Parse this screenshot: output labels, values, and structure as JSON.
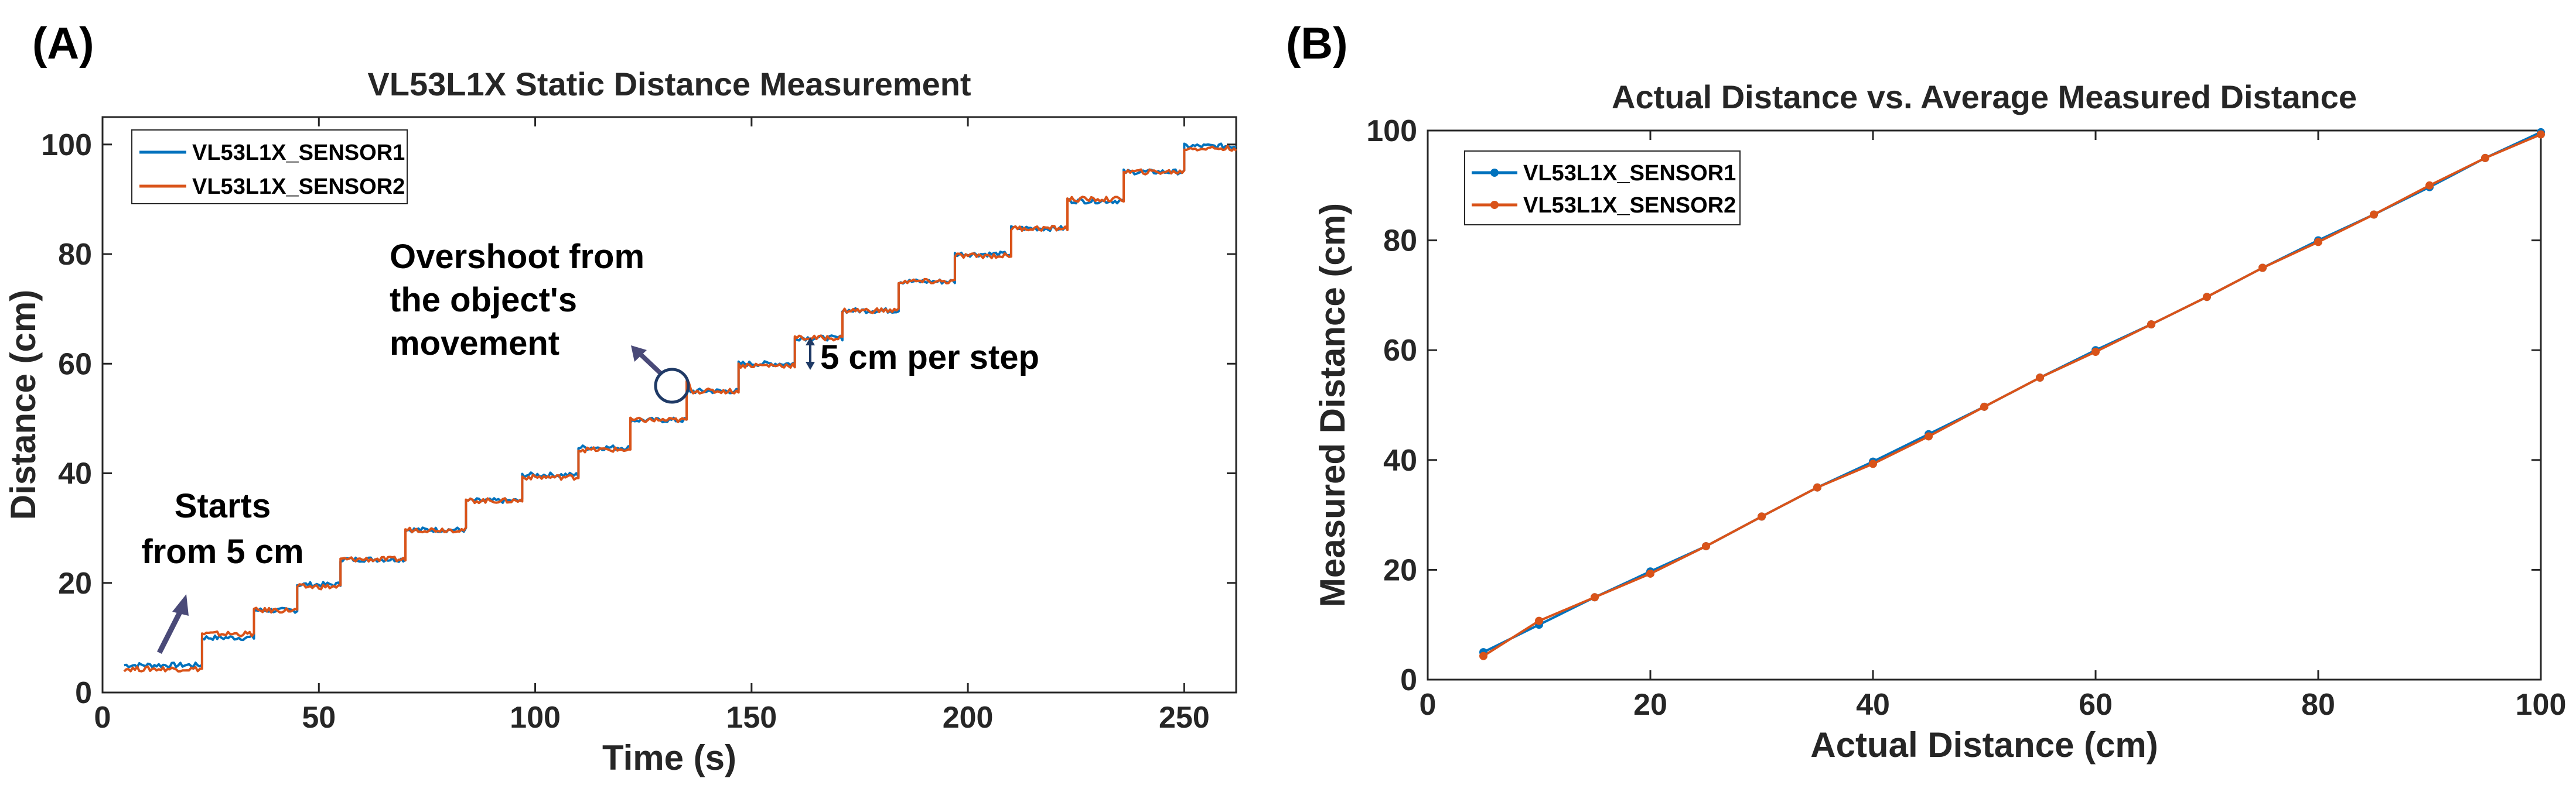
{
  "colors": {
    "sensor1": "#0072BD",
    "sensor2": "#D95319",
    "arrow": "#4a4a78",
    "circle": "#1f3a66",
    "step_arrow": "#1f3a66"
  },
  "panel_a": {
    "label": "(A)",
    "annotations": {
      "start_line1": "Starts",
      "start_line2": "from 5 cm",
      "overshoot_line1": "Overshoot from",
      "overshoot_line2": "the object's",
      "overshoot_line3": "movement",
      "step": "5 cm per step"
    }
  },
  "panel_b": {
    "label": "(B)"
  },
  "chart_data": [
    {
      "type": "line",
      "title": "VL53L1X Static Distance Measurement",
      "xlabel": "Time (s)",
      "ylabel": "Distance (cm)",
      "xlim": [
        0,
        262
      ],
      "ylim": [
        0,
        105
      ],
      "xticks": [
        0,
        50,
        100,
        150,
        200,
        250
      ],
      "yticks": [
        0,
        20,
        40,
        60,
        80,
        100
      ],
      "grid": false,
      "legend_position": "top-left",
      "step_times": [
        5,
        23,
        35,
        45,
        55,
        70,
        84,
        97,
        110,
        122,
        135,
        147,
        160,
        171,
        184,
        197,
        210,
        223,
        236,
        250,
        262
      ],
      "series": [
        {
          "name": "VL53L1X_SENSOR1",
          "levels": [
            5,
            10,
            15,
            19.7,
            24.3,
            29.7,
            35,
            39.7,
            44.7,
            49.7,
            55,
            60,
            64.7,
            69.7,
            75,
            80,
            84.7,
            89.7,
            95,
            99.7
          ]
        },
        {
          "name": "VL53L1X_SENSOR2",
          "levels": [
            4.3,
            10.7,
            15,
            19.3,
            24.3,
            29.7,
            35,
            39.3,
            44.3,
            49.7,
            55,
            59.7,
            64.7,
            69.7,
            75,
            79.7,
            84.7,
            90,
            95,
            99.3
          ]
        }
      ]
    },
    {
      "type": "line",
      "title": "Actual Distance vs. Average Measured Distance",
      "xlabel": "Actual Distance (cm)",
      "ylabel": "Measured Distance (cm)",
      "xlim": [
        0,
        100
      ],
      "ylim": [
        0,
        100
      ],
      "xticks": [
        0,
        20,
        40,
        60,
        80,
        100
      ],
      "yticks": [
        0,
        20,
        40,
        60,
        80,
        100
      ],
      "grid": false,
      "legend_position": "top-left",
      "x": [
        5,
        10,
        15,
        20,
        25,
        30,
        35,
        40,
        45,
        50,
        55,
        60,
        65,
        70,
        75,
        80,
        85,
        90,
        95,
        100
      ],
      "series": [
        {
          "name": "VL53L1X_SENSOR1",
          "values": [
            5,
            10,
            15,
            19.7,
            24.3,
            29.7,
            35,
            39.7,
            44.7,
            49.7,
            55,
            60,
            64.7,
            69.7,
            75,
            80,
            84.7,
            89.7,
            95,
            99.7
          ]
        },
        {
          "name": "VL53L1X_SENSOR2",
          "values": [
            4.3,
            10.7,
            15,
            19.3,
            24.3,
            29.7,
            35,
            39.3,
            44.3,
            49.7,
            55,
            59.7,
            64.7,
            69.7,
            75,
            79.7,
            84.7,
            90,
            95,
            99.3
          ]
        }
      ]
    }
  ]
}
